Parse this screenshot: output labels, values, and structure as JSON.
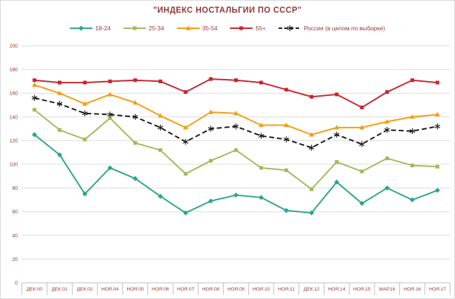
{
  "title": "\"ИНДЕКС НОСТАЛЬГИИ ПО СССР\"",
  "colors": {
    "title_text": "#953735",
    "axis_text": "#953735",
    "gridline": "#dcdcdc",
    "axis_line": "#bfbfbf",
    "background": "#ffffff"
  },
  "chart_data": {
    "type": "line",
    "title": "\"ИНДЕКС НОСТАЛЬГИИ ПО СССР\"",
    "xlabel": "",
    "ylabel": "",
    "ylim": [
      0,
      200
    ],
    "ystep": 20,
    "grid": true,
    "legend_position": "top",
    "y_tick_labels": [
      "0",
      "20",
      "40",
      "60",
      "80",
      "100",
      "120",
      "140",
      "160",
      "180",
      "200"
    ],
    "categories": [
      "ДЕК.00",
      "ДЕК.01",
      "ДЕК.02",
      "НОЯ.04",
      "НОЯ.05",
      "НОЯ.06",
      "НОЯ.07",
      "НОЯ.08",
      "НОЯ.09",
      "НОЯ.10",
      "НОЯ.11",
      "ДЕК.12",
      "НОЯ.14",
      "НОЯ.15",
      "МАР.16",
      "НОЯ.16",
      "НОЯ.17"
    ],
    "series": [
      {
        "name": "18-24",
        "color": "#2CA58D",
        "marker": "diamond",
        "dashed": false,
        "values": [
          125,
          108,
          75,
          97,
          88,
          73,
          59,
          69,
          74,
          72,
          61,
          59,
          85,
          67,
          80,
          70,
          78
        ]
      },
      {
        "name": "25-34",
        "color": "#A2B95A",
        "marker": "square",
        "dashed": false,
        "values": [
          146,
          129,
          121,
          139,
          118,
          112,
          92,
          103,
          112,
          97,
          95,
          79,
          102,
          94,
          105,
          99,
          98
        ]
      },
      {
        "name": "35-54",
        "color": "#F49C12",
        "marker": "triangle",
        "dashed": false,
        "values": [
          167,
          160,
          151,
          159,
          152,
          141,
          131,
          144,
          143,
          133,
          133,
          125,
          131,
          131,
          136,
          140,
          142
        ]
      },
      {
        "name": "55+",
        "color": "#C9252C",
        "marker": "square",
        "dashed": false,
        "values": [
          171,
          169,
          169,
          170,
          171,
          170,
          161,
          172,
          171,
          169,
          163,
          157,
          159,
          148,
          161,
          171,
          169
        ]
      },
      {
        "name": "Россия (в целом по выборке)",
        "color": "#1a1a1a",
        "marker": "star",
        "dashed": true,
        "values": [
          156,
          151,
          143,
          142,
          140,
          131,
          119,
          130,
          132,
          124,
          121,
          114,
          125,
          117,
          129,
          128,
          132
        ]
      }
    ]
  }
}
